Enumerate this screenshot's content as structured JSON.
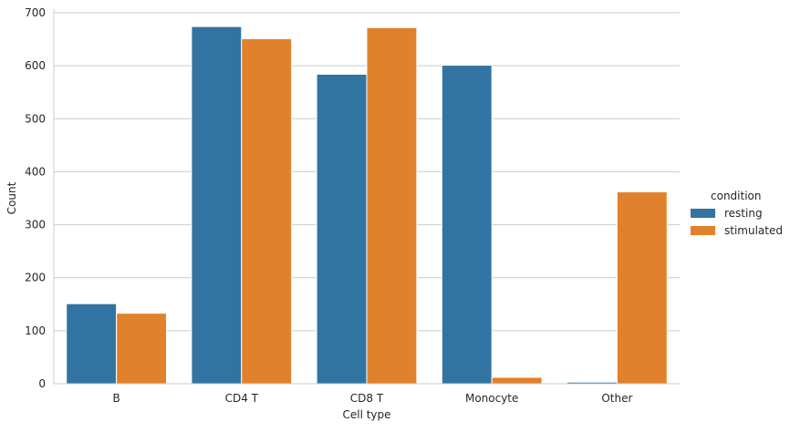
{
  "chart_data": {
    "type": "bar",
    "xlabel": "Cell type",
    "ylabel": "Count",
    "categories": [
      "B",
      "CD4 T",
      "CD8 T",
      "Monocyte",
      "Other"
    ],
    "series": [
      {
        "name": "resting",
        "values": [
          151,
          674,
          584,
          601,
          3
        ],
        "color": "#3274a1"
      },
      {
        "name": "stimulated",
        "values": [
          133,
          651,
          672,
          12,
          362
        ],
        "color": "#e1812c"
      }
    ],
    "ylim": [
      0,
      700
    ],
    "yticks": [
      0,
      100,
      200,
      300,
      400,
      500,
      600,
      700
    ],
    "grid": "horizontal",
    "legend": {
      "title": "condition",
      "placement": "right"
    }
  }
}
